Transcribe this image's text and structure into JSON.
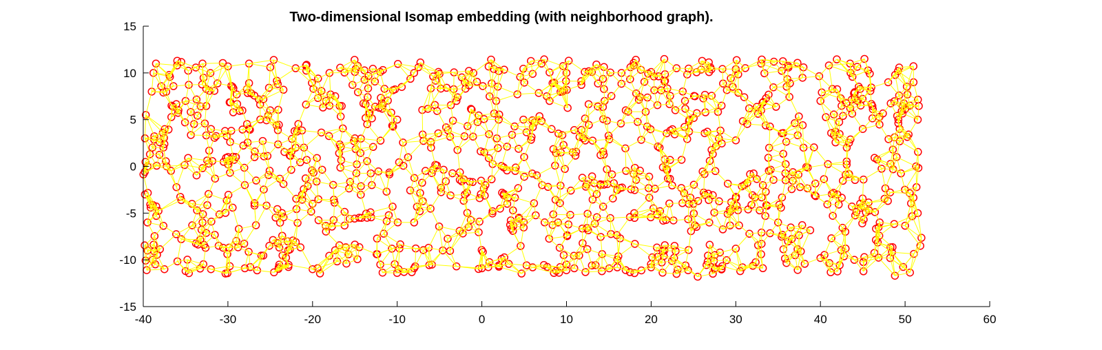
{
  "chart_data": {
    "type": "scatter",
    "title": "Two-dimensional Isomap embedding (with neighborhood graph).",
    "xlabel": "",
    "ylabel": "",
    "xlim": [
      -40,
      60
    ],
    "ylim": [
      -15,
      15
    ],
    "x_ticks": [
      "-40",
      "-30",
      "-20",
      "-10",
      "0",
      "10",
      "20",
      "30",
      "40",
      "50",
      "60"
    ],
    "y_ticks": [
      "15",
      "10",
      "5",
      "0",
      "-5",
      "-10",
      "-15"
    ],
    "grid": false,
    "legend": "none",
    "marker": "circle",
    "marker_color": "#ff0000",
    "edge_color": "#ffff00",
    "series": [
      {
        "kind": "embedding-points",
        "x_range": [
          -40,
          52
        ],
        "y_range": [
          -11.5,
          11.5
        ],
        "approx_point_count": 1200,
        "points": [
          [
            -38.5,
            11.0
          ],
          [
            -36.0,
            10.8
          ],
          [
            -33.0,
            11.0
          ],
          [
            -30.0,
            10.7
          ],
          [
            -27.5,
            11.0
          ],
          [
            -25.0,
            10.6
          ],
          [
            -22.0,
            10.5
          ],
          [
            -18.0,
            10.0
          ],
          [
            -15.0,
            10.1
          ],
          [
            -12.0,
            10.1
          ],
          [
            -8.0,
            10.0
          ],
          [
            -5.0,
            9.9
          ],
          [
            -1.0,
            10.0
          ],
          [
            2.0,
            10.2
          ],
          [
            6.0,
            9.9
          ],
          [
            10.0,
            10.0
          ],
          [
            13.0,
            10.1
          ],
          [
            16.5,
            10.0
          ],
          [
            20.0,
            10.1
          ],
          [
            23.0,
            10.5
          ],
          [
            27.0,
            10.6
          ],
          [
            30.0,
            10.4
          ],
          [
            33.0,
            11.0
          ],
          [
            34.5,
            11.2
          ],
          [
            38.0,
            10.6
          ],
          [
            41.0,
            10.8
          ],
          [
            43.5,
            11.0
          ],
          [
            45.2,
            11.5
          ],
          [
            48.0,
            9.0
          ],
          [
            51.0,
            9.0
          ],
          [
            51.5,
            5.0
          ],
          [
            51.3,
            0.0
          ],
          [
            51.5,
            -5.0
          ],
          [
            51.8,
            -8.5
          ],
          [
            48.8,
            -11.7
          ],
          [
            44.0,
            -10.0
          ],
          [
            40.0,
            -9.8
          ],
          [
            37.0,
            -9.5
          ],
          [
            33.0,
            -9.4
          ],
          [
            30.0,
            -8.8
          ],
          [
            27.5,
            -11.0
          ],
          [
            25.5,
            -11.8
          ],
          [
            23.0,
            -11.5
          ],
          [
            20.0,
            -10.8
          ],
          [
            16.0,
            -10.8
          ],
          [
            13.0,
            -10.6
          ],
          [
            10.0,
            -10.5
          ],
          [
            6.0,
            -10.8
          ],
          [
            2.0,
            -10.6
          ],
          [
            0.0,
            -10.9
          ],
          [
            -3.0,
            -10.7
          ],
          [
            -8.0,
            -10.9
          ],
          [
            -12.0,
            -10.5
          ],
          [
            -16.0,
            -10.4
          ],
          [
            -20.0,
            -11.0
          ],
          [
            -24.0,
            -10.8
          ],
          [
            -28.0,
            -10.9
          ],
          [
            -32.0,
            -11.0
          ],
          [
            -35.0,
            -11.2
          ],
          [
            -37.5,
            -11.0
          ],
          [
            -39.5,
            -9.0
          ],
          [
            -39.5,
            -6.0
          ],
          [
            -39.8,
            -3.0
          ],
          [
            -39.5,
            0.0
          ],
          [
            -39.8,
            3.0
          ],
          [
            -39.7,
            5.5
          ],
          [
            -39.0,
            8.0
          ],
          [
            -38.8,
            10.0
          ],
          [
            -35.0,
            7.0
          ],
          [
            -32.0,
            4.0
          ],
          [
            -30.0,
            1.0
          ],
          [
            -28.0,
            -2.0
          ],
          [
            -33.0,
            -6.0
          ],
          [
            -25.0,
            6.0
          ],
          [
            -22.0,
            2.0
          ],
          [
            -20.0,
            -4.0
          ],
          [
            -18.0,
            6.5
          ],
          [
            -15.0,
            3.0
          ],
          [
            -13.0,
            -2.0
          ],
          [
            -10.0,
            5.0
          ],
          [
            -8.0,
            -6.0
          ],
          [
            -6.0,
            2.0
          ],
          [
            -3.0,
            7.0
          ],
          [
            -2.0,
            -3.0
          ],
          [
            2.0,
            5.0
          ],
          [
            3.0,
            -4.0
          ],
          [
            5.0,
            1.0
          ],
          [
            8.0,
            7.0
          ],
          [
            9.0,
            -6.0
          ],
          [
            12.0,
            3.0
          ],
          [
            14.0,
            -2.0
          ],
          [
            17.0,
            6.0
          ],
          [
            18.0,
            -5.0
          ],
          [
            21.0,
            2.0
          ],
          [
            24.0,
            7.0
          ],
          [
            25.0,
            -4.0
          ],
          [
            28.0,
            3.0
          ],
          [
            31.0,
            -2.0
          ],
          [
            33.0,
            6.0
          ],
          [
            35.0,
            -6.0
          ],
          [
            38.0,
            2.0
          ],
          [
            40.0,
            7.0
          ],
          [
            42.0,
            -3.0
          ],
          [
            45.0,
            4.0
          ],
          [
            47.0,
            -6.0
          ],
          [
            49.0,
            1.0
          ]
        ]
      }
    ]
  }
}
